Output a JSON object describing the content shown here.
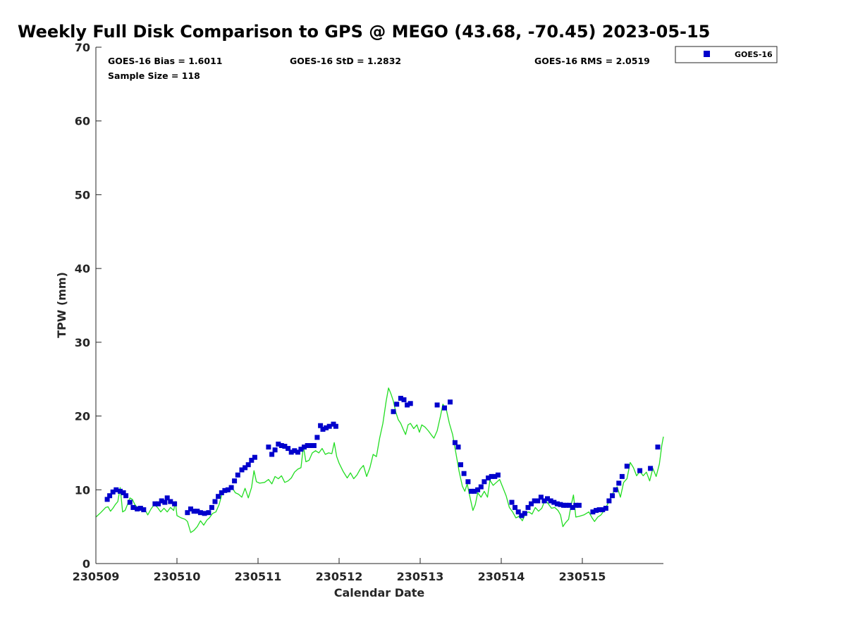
{
  "chart_data": {
    "type": "scatter",
    "title": "Weekly Full Disk Comparison to GPS @ MEGO (43.68, -70.45) 2023-05-15",
    "xlabel": "Calendar Date",
    "ylabel": "TPW (mm)",
    "xlim": [
      0,
      7
    ],
    "ylim": [
      0,
      70
    ],
    "x_ticks": [
      {
        "value": 0,
        "label": "230509"
      },
      {
        "value": 1,
        "label": "230510"
      },
      {
        "value": 2,
        "label": "230511"
      },
      {
        "value": 3,
        "label": "230512"
      },
      {
        "value": 4,
        "label": "230513"
      },
      {
        "value": 5,
        "label": "230514"
      },
      {
        "value": 6,
        "label": "230515"
      }
    ],
    "y_ticks": [
      0,
      10,
      20,
      30,
      40,
      50,
      60,
      70
    ],
    "stats": {
      "bias": "GOES-16 Bias = 1.6011",
      "sample_size": "Sample Size = 118",
      "std": "GOES-16 StD = 1.2832",
      "rms": "GOES-16 RMS = 2.0519"
    },
    "legend": {
      "position": "top-right",
      "entries": [
        "GOES-16"
      ]
    },
    "colors": {
      "goes": "#0000cc",
      "gps": "#22dd22"
    },
    "series": [
      {
        "name": "GOES-16",
        "kind": "scatter",
        "color": "#0000cc",
        "points": [
          [
            0.14,
            8.7
          ],
          [
            0.17,
            9.2
          ],
          [
            0.21,
            9.7
          ],
          [
            0.25,
            10.0
          ],
          [
            0.3,
            9.8
          ],
          [
            0.34,
            9.6
          ],
          [
            0.37,
            9.2
          ],
          [
            0.42,
            8.3
          ],
          [
            0.46,
            7.6
          ],
          [
            0.51,
            7.4
          ],
          [
            0.55,
            7.5
          ],
          [
            0.59,
            7.3
          ],
          [
            0.73,
            8.1
          ],
          [
            0.77,
            8.1
          ],
          [
            0.81,
            8.5
          ],
          [
            0.85,
            8.3
          ],
          [
            0.88,
            8.9
          ],
          [
            0.92,
            8.4
          ],
          [
            0.97,
            8.1
          ],
          [
            1.13,
            6.9
          ],
          [
            1.17,
            7.4
          ],
          [
            1.21,
            7.1
          ],
          [
            1.25,
            7.1
          ],
          [
            1.29,
            6.9
          ],
          [
            1.34,
            6.8
          ],
          [
            1.39,
            6.9
          ],
          [
            1.43,
            7.6
          ],
          [
            1.47,
            8.4
          ],
          [
            1.51,
            9.1
          ],
          [
            1.55,
            9.6
          ],
          [
            1.59,
            9.9
          ],
          [
            1.63,
            10.0
          ],
          [
            1.67,
            10.3
          ],
          [
            1.71,
            11.2
          ],
          [
            1.75,
            12.0
          ],
          [
            1.8,
            12.7
          ],
          [
            1.84,
            13.0
          ],
          [
            1.88,
            13.4
          ],
          [
            1.92,
            14.0
          ],
          [
            1.96,
            14.4
          ],
          [
            2.13,
            15.8
          ],
          [
            2.17,
            14.8
          ],
          [
            2.21,
            15.4
          ],
          [
            2.25,
            16.2
          ],
          [
            2.29,
            16.0
          ],
          [
            2.33,
            15.9
          ],
          [
            2.37,
            15.6
          ],
          [
            2.41,
            15.1
          ],
          [
            2.45,
            15.3
          ],
          [
            2.49,
            15.1
          ],
          [
            2.53,
            15.5
          ],
          [
            2.57,
            15.8
          ],
          [
            2.61,
            16.0
          ],
          [
            2.65,
            16.0
          ],
          [
            2.69,
            16.0
          ],
          [
            2.73,
            17.1
          ],
          [
            2.77,
            18.7
          ],
          [
            2.8,
            18.2
          ],
          [
            2.84,
            18.4
          ],
          [
            2.88,
            18.6
          ],
          [
            2.93,
            18.9
          ],
          [
            2.96,
            18.6
          ],
          [
            3.67,
            20.6
          ],
          [
            3.71,
            21.6
          ],
          [
            3.76,
            22.4
          ],
          [
            3.8,
            22.2
          ],
          [
            3.84,
            21.5
          ],
          [
            3.88,
            21.7
          ],
          [
            4.21,
            21.5
          ],
          [
            4.3,
            21.1
          ],
          [
            4.37,
            21.9
          ],
          [
            4.43,
            16.4
          ],
          [
            4.47,
            15.8
          ],
          [
            4.5,
            13.4
          ],
          [
            4.54,
            12.2
          ],
          [
            4.59,
            11.1
          ],
          [
            4.63,
            9.8
          ],
          [
            4.67,
            9.8
          ],
          [
            4.71,
            10.0
          ],
          [
            4.75,
            10.4
          ],
          [
            4.79,
            11.1
          ],
          [
            4.84,
            11.6
          ],
          [
            4.88,
            11.8
          ],
          [
            4.92,
            11.8
          ],
          [
            4.96,
            12.0
          ],
          [
            5.13,
            8.3
          ],
          [
            5.17,
            7.6
          ],
          [
            5.21,
            7.0
          ],
          [
            5.25,
            6.5
          ],
          [
            5.29,
            6.8
          ],
          [
            5.33,
            7.6
          ],
          [
            5.37,
            8.1
          ],
          [
            5.41,
            8.5
          ],
          [
            5.45,
            8.5
          ],
          [
            5.49,
            9.0
          ],
          [
            5.53,
            8.5
          ],
          [
            5.57,
            8.8
          ],
          [
            5.61,
            8.5
          ],
          [
            5.65,
            8.3
          ],
          [
            5.69,
            8.1
          ],
          [
            5.73,
            8.0
          ],
          [
            5.77,
            7.9
          ],
          [
            5.8,
            7.9
          ],
          [
            5.84,
            7.9
          ],
          [
            5.88,
            7.6
          ],
          [
            5.92,
            7.9
          ],
          [
            5.96,
            7.9
          ],
          [
            6.13,
            7.0
          ],
          [
            6.17,
            7.2
          ],
          [
            6.21,
            7.3
          ],
          [
            6.25,
            7.3
          ],
          [
            6.29,
            7.5
          ],
          [
            6.33,
            8.5
          ],
          [
            6.37,
            9.2
          ],
          [
            6.41,
            10.0
          ],
          [
            6.45,
            10.9
          ],
          [
            6.49,
            11.8
          ],
          [
            6.55,
            13.2
          ],
          [
            6.71,
            12.6
          ],
          [
            6.84,
            12.9
          ],
          [
            6.93,
            15.8
          ]
        ]
      },
      {
        "name": "GPS",
        "kind": "line",
        "color": "#22dd22",
        "points": [
          [
            0.0,
            6.3
          ],
          [
            0.06,
            6.9
          ],
          [
            0.12,
            7.6
          ],
          [
            0.15,
            7.7
          ],
          [
            0.18,
            7.1
          ],
          [
            0.21,
            7.5
          ],
          [
            0.24,
            8.0
          ],
          [
            0.27,
            8.4
          ],
          [
            0.3,
            10.3
          ],
          [
            0.33,
            7.0
          ],
          [
            0.36,
            7.2
          ],
          [
            0.39,
            8.0
          ],
          [
            0.42,
            8.9
          ],
          [
            0.45,
            8.7
          ],
          [
            0.48,
            8.0
          ],
          [
            0.51,
            7.6
          ],
          [
            0.54,
            7.5
          ],
          [
            0.57,
            7.7
          ],
          [
            0.6,
            7.4
          ],
          [
            0.64,
            6.6
          ],
          [
            0.68,
            7.4
          ],
          [
            0.72,
            8.0
          ],
          [
            0.76,
            7.6
          ],
          [
            0.8,
            7.0
          ],
          [
            0.84,
            7.5
          ],
          [
            0.88,
            7.0
          ],
          [
            0.92,
            7.6
          ],
          [
            0.96,
            7.2
          ],
          [
            0.98,
            8.4
          ],
          [
            1.0,
            6.5
          ],
          [
            1.05,
            6.2
          ],
          [
            1.1,
            6.0
          ],
          [
            1.13,
            5.7
          ],
          [
            1.17,
            4.2
          ],
          [
            1.21,
            4.5
          ],
          [
            1.25,
            5.0
          ],
          [
            1.29,
            5.8
          ],
          [
            1.33,
            5.2
          ],
          [
            1.37,
            5.9
          ],
          [
            1.4,
            6.2
          ],
          [
            1.44,
            6.8
          ],
          [
            1.48,
            7.0
          ],
          [
            1.52,
            8.0
          ],
          [
            1.56,
            9.6
          ],
          [
            1.6,
            9.9
          ],
          [
            1.64,
            9.7
          ],
          [
            1.68,
            10.3
          ],
          [
            1.72,
            9.6
          ],
          [
            1.76,
            9.4
          ],
          [
            1.8,
            9.0
          ],
          [
            1.84,
            10.2
          ],
          [
            1.88,
            8.9
          ],
          [
            1.92,
            10.3
          ],
          [
            1.95,
            12.6
          ],
          [
            1.98,
            11.1
          ],
          [
            2.02,
            10.9
          ],
          [
            2.08,
            11.0
          ],
          [
            2.13,
            11.4
          ],
          [
            2.17,
            10.8
          ],
          [
            2.21,
            11.8
          ],
          [
            2.25,
            11.5
          ],
          [
            2.29,
            11.9
          ],
          [
            2.33,
            11.0
          ],
          [
            2.37,
            11.2
          ],
          [
            2.41,
            11.6
          ],
          [
            2.45,
            12.4
          ],
          [
            2.49,
            12.8
          ],
          [
            2.53,
            13.0
          ],
          [
            2.56,
            15.9
          ],
          [
            2.59,
            13.8
          ],
          [
            2.63,
            14.0
          ],
          [
            2.67,
            15.0
          ],
          [
            2.71,
            15.3
          ],
          [
            2.75,
            15.0
          ],
          [
            2.79,
            15.6
          ],
          [
            2.83,
            14.8
          ],
          [
            2.87,
            15.0
          ],
          [
            2.91,
            14.9
          ],
          [
            2.94,
            16.4
          ],
          [
            2.97,
            14.5
          ],
          [
            3.0,
            13.6
          ],
          [
            3.05,
            12.5
          ],
          [
            3.1,
            11.6
          ],
          [
            3.14,
            12.3
          ],
          [
            3.18,
            11.5
          ],
          [
            3.22,
            12.0
          ],
          [
            3.26,
            12.8
          ],
          [
            3.3,
            13.3
          ],
          [
            3.34,
            11.8
          ],
          [
            3.38,
            13.0
          ],
          [
            3.42,
            14.8
          ],
          [
            3.46,
            14.5
          ],
          [
            3.5,
            17.0
          ],
          [
            3.54,
            19.0
          ],
          [
            3.58,
            22.0
          ],
          [
            3.61,
            23.8
          ],
          [
            3.64,
            23.0
          ],
          [
            3.67,
            22.0
          ],
          [
            3.7,
            20.5
          ],
          [
            3.73,
            19.5
          ],
          [
            3.76,
            19.0
          ],
          [
            3.79,
            18.2
          ],
          [
            3.82,
            17.5
          ],
          [
            3.85,
            18.8
          ],
          [
            3.88,
            19.0
          ],
          [
            3.92,
            18.3
          ],
          [
            3.96,
            18.8
          ],
          [
            3.99,
            17.8
          ],
          [
            4.02,
            18.8
          ],
          [
            4.06,
            18.5
          ],
          [
            4.1,
            18.0
          ],
          [
            4.14,
            17.4
          ],
          [
            4.17,
            17.0
          ],
          [
            4.21,
            18.0
          ],
          [
            4.25,
            20.0
          ],
          [
            4.28,
            21.6
          ],
          [
            4.32,
            21.0
          ],
          [
            4.36,
            19.0
          ],
          [
            4.4,
            17.5
          ],
          [
            4.44,
            15.0
          ],
          [
            4.48,
            12.5
          ],
          [
            4.52,
            10.5
          ],
          [
            4.55,
            9.8
          ],
          [
            4.58,
            10.8
          ],
          [
            4.62,
            8.7
          ],
          [
            4.65,
            7.2
          ],
          [
            4.68,
            8.0
          ],
          [
            4.71,
            9.6
          ],
          [
            4.75,
            9.0
          ],
          [
            4.79,
            9.8
          ],
          [
            4.83,
            9.0
          ],
          [
            4.86,
            11.3
          ],
          [
            4.9,
            10.6
          ],
          [
            4.94,
            11.0
          ],
          [
            4.98,
            11.4
          ],
          [
            5.02,
            10.3
          ],
          [
            5.06,
            9.2
          ],
          [
            5.1,
            7.6
          ],
          [
            5.14,
            7.0
          ],
          [
            5.18,
            6.2
          ],
          [
            5.22,
            6.4
          ],
          [
            5.26,
            5.8
          ],
          [
            5.3,
            6.8
          ],
          [
            5.34,
            7.0
          ],
          [
            5.38,
            6.7
          ],
          [
            5.42,
            7.6
          ],
          [
            5.46,
            7.1
          ],
          [
            5.5,
            7.5
          ],
          [
            5.54,
            8.6
          ],
          [
            5.58,
            8.1
          ],
          [
            5.62,
            7.5
          ],
          [
            5.66,
            7.6
          ],
          [
            5.7,
            7.2
          ],
          [
            5.73,
            6.6
          ],
          [
            5.76,
            5.0
          ],
          [
            5.79,
            5.5
          ],
          [
            5.83,
            6.0
          ],
          [
            5.86,
            7.8
          ],
          [
            5.89,
            9.3
          ],
          [
            5.92,
            6.3
          ],
          [
            5.96,
            6.4
          ],
          [
            6.02,
            6.6
          ],
          [
            6.08,
            7.0
          ],
          [
            6.12,
            6.2
          ],
          [
            6.15,
            5.7
          ],
          [
            6.19,
            6.3
          ],
          [
            6.23,
            6.6
          ],
          [
            6.27,
            7.2
          ],
          [
            6.31,
            8.0
          ],
          [
            6.35,
            9.0
          ],
          [
            6.39,
            9.8
          ],
          [
            6.43,
            10.4
          ],
          [
            6.47,
            9.0
          ],
          [
            6.51,
            11.0
          ],
          [
            6.55,
            11.5
          ],
          [
            6.59,
            13.7
          ],
          [
            6.63,
            13.0
          ],
          [
            6.67,
            11.9
          ],
          [
            6.71,
            12.5
          ],
          [
            6.75,
            11.9
          ],
          [
            6.79,
            12.4
          ],
          [
            6.83,
            11.2
          ],
          [
            6.87,
            12.9
          ],
          [
            6.91,
            11.8
          ],
          [
            6.95,
            13.5
          ],
          [
            6.98,
            16.0
          ],
          [
            7.0,
            17.2
          ]
        ]
      }
    ]
  }
}
